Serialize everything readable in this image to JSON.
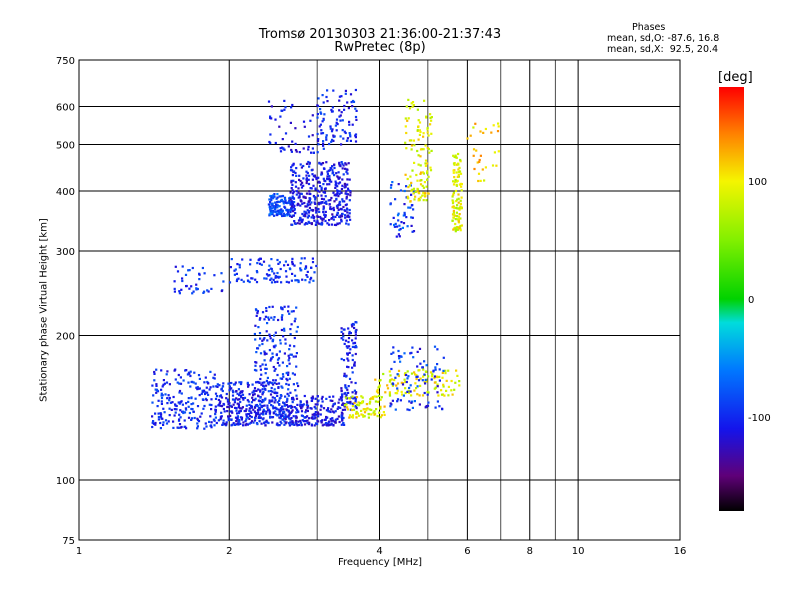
{
  "title": {
    "line1": "Tromsø 20130303 21:36:00-21:37:43",
    "line2": "RwPretec (8p)"
  },
  "stats": {
    "heading": "Phases",
    "o_line": "mean, sd,O: -87.6, 16.8",
    "x_line": "mean, sd,X:  92.5, 20.4"
  },
  "colorbar": {
    "unit": "[deg]",
    "range": [
      -180,
      180
    ],
    "ticks": [
      "100",
      "0",
      "-100"
    ],
    "tick_values": [
      100,
      0,
      -100
    ]
  },
  "chart_data": {
    "type": "scatter",
    "title": "Tromsø 20130303 21:36:00-21:37:43",
    "subtitle": "RwPretec (8p)",
    "xlabel": "Frequency [MHz]",
    "ylabel": "Stationary phase Virtual Height [km]",
    "x_scale": "log",
    "y_scale": "log",
    "xlim": [
      1,
      16
    ],
    "ylim": [
      75,
      750
    ],
    "x_ticks": [
      1,
      2,
      4,
      6,
      8,
      10,
      16
    ],
    "x_tick_labels": [
      "1",
      "2",
      "4",
      "6",
      "8",
      "10",
      "16"
    ],
    "y_ticks": [
      75,
      100,
      200,
      300,
      400,
      500,
      600,
      750
    ],
    "y_tick_labels": [
      "75",
      "100",
      "200",
      "300",
      "400",
      "500",
      "600",
      "750"
    ],
    "grid_x": [
      1,
      2,
      4,
      6,
      8,
      10,
      16
    ],
    "grid_x_minor": [
      3,
      5,
      7,
      9
    ],
    "grid_y": [
      100,
      200,
      300,
      400,
      500,
      600
    ],
    "grid": true,
    "color_encoding": "phase [deg]",
    "clusters": [
      {
        "mode": "O",
        "f": [
          1.4,
          1.9
        ],
        "h": [
          128,
          170
        ],
        "phase": -100,
        "n": 220
      },
      {
        "mode": "O",
        "f": [
          1.9,
          2.6
        ],
        "h": [
          130,
          160
        ],
        "phase": -105,
        "n": 320
      },
      {
        "mode": "O",
        "f": [
          2.25,
          2.75
        ],
        "h": [
          135,
          230
        ],
        "phase": -98,
        "n": 240
      },
      {
        "mode": "O",
        "f": [
          2.6,
          3.4
        ],
        "h": [
          130,
          150
        ],
        "phase": -108,
        "n": 220
      },
      {
        "mode": "O",
        "f": [
          3.35,
          3.6
        ],
        "h": [
          140,
          215
        ],
        "phase": -105,
        "n": 110
      },
      {
        "mode": "O",
        "f": [
          1.55,
          1.95
        ],
        "h": [
          245,
          280
        ],
        "phase": -100,
        "n": 40
      },
      {
        "mode": "O",
        "f": [
          2.0,
          3.0
        ],
        "h": [
          258,
          290
        ],
        "phase": -95,
        "n": 110
      },
      {
        "mode": "O",
        "f": [
          2.4,
          2.7
        ],
        "h": [
          355,
          395
        ],
        "phase": -80,
        "n": 130
      },
      {
        "mode": "O",
        "f": [
          2.65,
          3.5
        ],
        "h": [
          340,
          460
        ],
        "phase": -110,
        "n": 420
      },
      {
        "mode": "O",
        "f": [
          3.0,
          3.6
        ],
        "h": [
          500,
          650
        ],
        "phase": -100,
        "n": 90
      },
      {
        "mode": "O",
        "f": [
          2.4,
          3.1
        ],
        "h": [
          480,
          620
        ],
        "phase": -105,
        "n": 60
      },
      {
        "mode": "X",
        "f": [
          3.4,
          4.1
        ],
        "h": [
          135,
          150
        ],
        "phase": 95,
        "n": 80
      },
      {
        "mode": "X",
        "f": [
          3.9,
          5.8
        ],
        "h": [
          150,
          170
        ],
        "phase": 95,
        "n": 110
      },
      {
        "mode": "X",
        "f": [
          4.2,
          5.4
        ],
        "h": [
          140,
          190
        ],
        "phase": -95,
        "n": 90
      },
      {
        "mode": "X",
        "f": [
          4.2,
          4.7
        ],
        "h": [
          320,
          420
        ],
        "phase": -90,
        "n": 50
      },
      {
        "mode": "X",
        "f": [
          4.5,
          5.1
        ],
        "h": [
          380,
          620
        ],
        "phase": 95,
        "n": 120
      },
      {
        "mode": "X",
        "f": [
          5.6,
          5.85
        ],
        "h": [
          330,
          480
        ],
        "phase": 95,
        "n": 110
      },
      {
        "mode": "X",
        "f": [
          6.0,
          7.0
        ],
        "h": [
          420,
          560
        ],
        "phase": 110,
        "n": 30
      }
    ]
  }
}
